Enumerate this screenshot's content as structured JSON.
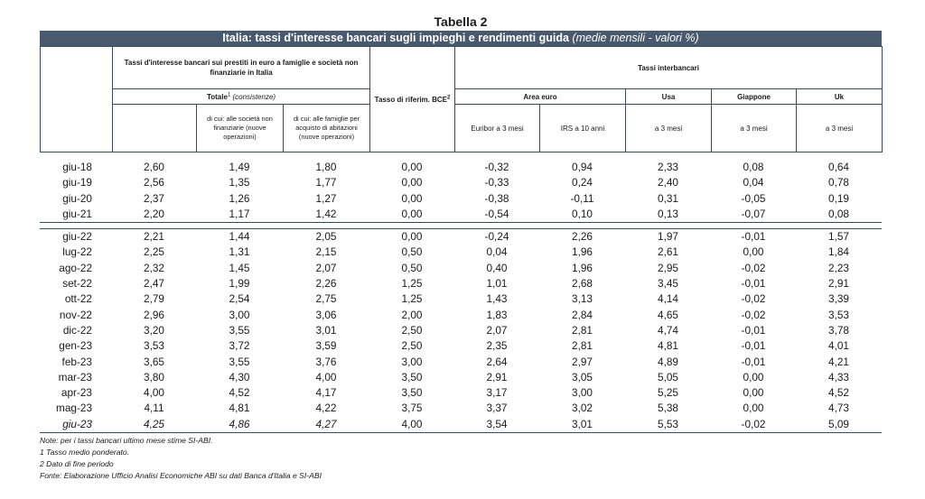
{
  "caption": "Tabella 2",
  "title": "Italia: tassi d'interesse bancari sugli impieghi e rendimenti guida",
  "title_note": "(medie mensili - valori %)",
  "headers": {
    "group_prestiti": "Tassi d'interesse bancari sui prestiti in euro a famiglie e società non finanziarie in Italia",
    "totale": "Totale",
    "totale_sup": "1",
    "consistenze": "(consistenze)",
    "dicui_societa": "di cui: alle società non finanziarie (nuove operazioni)",
    "dicui_famiglie": "di cui: alle famiglie per acquisto di abitazioni (nuove operazioni)",
    "tasso_bce": "Tasso di riferim. BCE",
    "tasso_bce_sup": "2",
    "interbancari": "Tassi interbancari",
    "area_euro": "Area euro",
    "usa": "Usa",
    "giappone": "Giappone",
    "uk": "Uk",
    "euribor": "Euribor a 3 mesi",
    "irs": "IRS a 10 anni",
    "usa_sub": "a 3 mesi",
    "giappone_sub": "a 3 mesi",
    "uk_sub": "a 3 mesi"
  },
  "annual_rows": [
    [
      "giu-18",
      "2,60",
      "1,49",
      "1,80",
      "0,00",
      "-0,32",
      "0,94",
      "2,33",
      "0,08",
      "0,64"
    ],
    [
      "giu-19",
      "2,56",
      "1,35",
      "1,77",
      "0,00",
      "-0,33",
      "0,24",
      "2,40",
      "0,04",
      "0,78"
    ],
    [
      "giu-20",
      "2,37",
      "1,26",
      "1,27",
      "0,00",
      "-0,38",
      "-0,11",
      "0,31",
      "-0,05",
      "0,19"
    ],
    [
      "giu-21",
      "2,20",
      "1,17",
      "1,42",
      "0,00",
      "-0,54",
      "0,10",
      "0,13",
      "-0,07",
      "0,08"
    ]
  ],
  "monthly_rows": [
    [
      "giu-22",
      "2,21",
      "1,44",
      "2,05",
      "0,00",
      "-0,24",
      "2,26",
      "1,97",
      "-0,01",
      "1,57"
    ],
    [
      "lug-22",
      "2,25",
      "1,31",
      "2,15",
      "0,50",
      "0,04",
      "1,96",
      "2,61",
      "0,00",
      "1,84"
    ],
    [
      "ago-22",
      "2,32",
      "1,45",
      "2,07",
      "0,50",
      "0,40",
      "1,96",
      "2,95",
      "-0,02",
      "2,23"
    ],
    [
      "set-22",
      "2,47",
      "1,99",
      "2,26",
      "1,25",
      "1,01",
      "2,68",
      "3,45",
      "-0,01",
      "2,91"
    ],
    [
      "ott-22",
      "2,79",
      "2,54",
      "2,75",
      "1,25",
      "1,43",
      "3,13",
      "4,14",
      "-0,02",
      "3,39"
    ],
    [
      "nov-22",
      "2,96",
      "3,00",
      "3,06",
      "2,00",
      "1,83",
      "2,84",
      "4,65",
      "-0,02",
      "3,53"
    ],
    [
      "dic-22",
      "3,20",
      "3,55",
      "3,01",
      "2,50",
      "2,07",
      "2,81",
      "4,74",
      "-0,01",
      "3,78"
    ],
    [
      "gen-23",
      "3,53",
      "3,72",
      "3,59",
      "2,50",
      "2,35",
      "2,81",
      "4,81",
      "-0,01",
      "4,01"
    ],
    [
      "feb-23",
      "3,65",
      "3,55",
      "3,76",
      "3,00",
      "2,64",
      "2,97",
      "4,89",
      "-0,01",
      "4,21"
    ],
    [
      "mar-23",
      "3,80",
      "4,30",
      "4,00",
      "3,50",
      "2,91",
      "3,05",
      "5,05",
      "0,00",
      "4,33"
    ],
    [
      "apr-23",
      "4,00",
      "4,52",
      "4,17",
      "3,50",
      "3,17",
      "3,00",
      "5,25",
      "0,00",
      "4,52"
    ],
    [
      "mag-23",
      "4,11",
      "4,81",
      "4,22",
      "3,75",
      "3,37",
      "3,02",
      "5,38",
      "0,00",
      "4,73"
    ],
    [
      "giu-23",
      "4,25",
      "4,86",
      "4,27",
      "4,00",
      "3,54",
      "3,01",
      "5,53",
      "-0,02",
      "5,09"
    ]
  ],
  "notes": [
    "Note: per i tassi bancari ultimo mese stime SI-ABI.",
    "1 Tasso medio ponderato.",
    "2 Dato di fine periodo",
    "Fonte: Elaborazione Ufficio Analisi Economiche ABI su dati Banca d'Italia e SI-ABI"
  ]
}
